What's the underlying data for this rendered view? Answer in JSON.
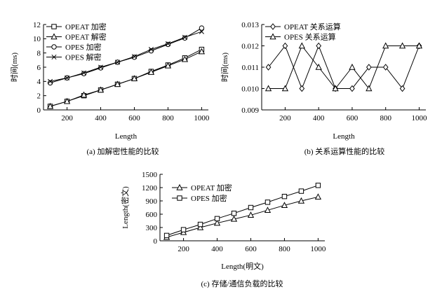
{
  "chart_data": [
    {
      "type": "line",
      "caption": "(a)  加解密性能的比较",
      "xlabel": "Length",
      "ylabel": "时间(ms)",
      "xlim": [
        60,
        1040
      ],
      "ylim": [
        0,
        12
      ],
      "xticks": [
        200,
        400,
        600,
        800,
        1000
      ],
      "yticks": [
        0,
        2,
        4,
        6,
        8,
        10,
        12
      ],
      "legend": "top-left",
      "grid": false,
      "x": [
        100,
        200,
        300,
        400,
        500,
        600,
        700,
        800,
        900,
        1000
      ],
      "series": [
        {
          "name": "OPEAT 加密",
          "marker": "square",
          "values": [
            0.5,
            1.2,
            2.0,
            2.8,
            3.6,
            4.4,
            5.4,
            6.3,
            7.3,
            8.5
          ]
        },
        {
          "name": "OPEAT 解密",
          "marker": "triangle",
          "values": [
            0.5,
            1.2,
            2.1,
            2.8,
            3.6,
            4.4,
            5.3,
            6.2,
            7.1,
            8.2
          ]
        },
        {
          "name": "OPES 加密",
          "marker": "circle",
          "values": [
            3.8,
            4.5,
            5.1,
            5.9,
            6.7,
            7.4,
            8.3,
            9.2,
            10.1,
            11.5
          ]
        },
        {
          "name": "OPES 解密",
          "marker": "cross",
          "values": [
            4.0,
            4.5,
            5.2,
            6.0,
            6.7,
            7.5,
            8.5,
            9.3,
            10.2,
            11.0
          ]
        }
      ]
    },
    {
      "type": "line",
      "caption": "(b)  关系运算性能的比较",
      "xlabel": "Length",
      "ylabel": "时间(ms)",
      "xlim": [
        60,
        1040
      ],
      "ylim": [
        0.009,
        0.013
      ],
      "xticks": [
        200,
        400,
        600,
        800,
        1000
      ],
      "yticks": [
        0.009,
        0.01,
        0.011,
        0.012,
        0.013
      ],
      "yticklabels": [
        "0.009",
        "0.010",
        "0.011",
        "0.012",
        "0.013"
      ],
      "legend": "top-left",
      "grid": false,
      "x": [
        100,
        200,
        300,
        400,
        500,
        600,
        700,
        800,
        900,
        1000
      ],
      "series": [
        {
          "name": "OPEAT 关系运算",
          "marker": "diamond",
          "values": [
            0.011,
            0.012,
            0.01,
            0.012,
            0.01,
            0.01,
            0.011,
            0.011,
            0.01,
            0.012
          ]
        },
        {
          "name": "OPES 关系运算",
          "marker": "triangle",
          "values": [
            0.01,
            0.01,
            0.012,
            0.011,
            0.01,
            0.011,
            0.01,
            0.012,
            0.012,
            0.012
          ]
        }
      ]
    },
    {
      "type": "line",
      "caption": "(c)  存储/通信负载的比较",
      "xlabel": "Length(明文)",
      "ylabel": "Length(密文)",
      "xlim": [
        60,
        1040
      ],
      "ylim": [
        0,
        1500
      ],
      "xticks": [
        200,
        400,
        600,
        800,
        1000
      ],
      "yticks": [
        0,
        300,
        600,
        900,
        1200,
        1500
      ],
      "legend": "top-left",
      "grid": false,
      "x": [
        100,
        200,
        300,
        400,
        500,
        600,
        700,
        800,
        900,
        1000
      ],
      "series": [
        {
          "name": "OPEAT 加密",
          "marker": "triangle",
          "values": [
            80,
            190,
            300,
            400,
            490,
            580,
            690,
            800,
            900,
            990
          ]
        },
        {
          "name": "OPES 加密",
          "marker": "square",
          "values": [
            120,
            250,
            370,
            500,
            620,
            750,
            870,
            1000,
            1120,
            1250
          ]
        }
      ]
    }
  ]
}
